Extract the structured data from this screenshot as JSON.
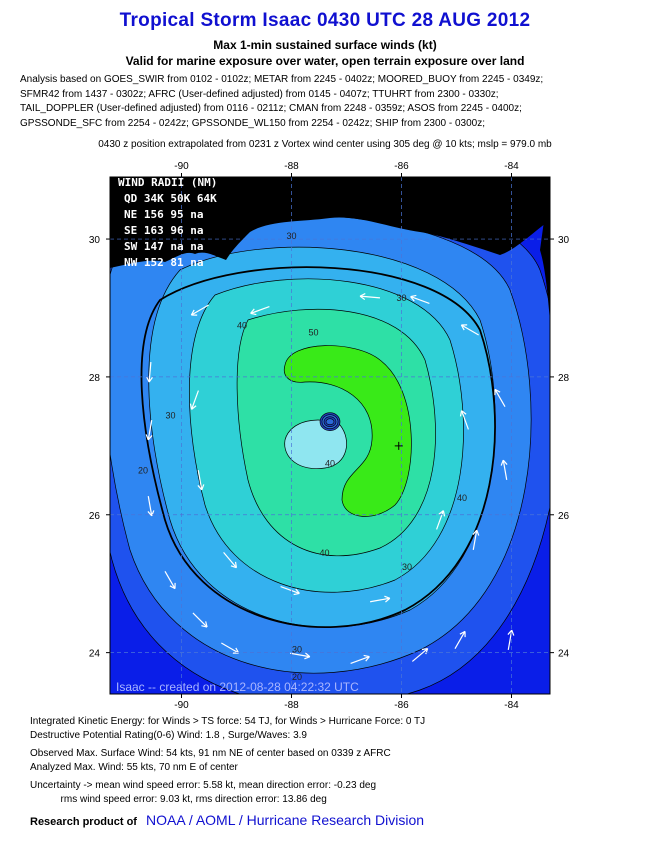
{
  "title": "Tropical Storm Isaac 0430 UTC 28 AUG 2012",
  "subtitle1": "Max 1-min sustained surface winds (kt)",
  "subtitle2": "Valid for marine exposure over water, open terrain exposure over land",
  "analysis_lines": [
    "Analysis based on GOES_SWIR from 0102 - 0102z; METAR from 2245 - 0402z; MOORED_BUOY from 2245 - 0349z;",
    "SFMR42 from 1437 - 0302z; AFRC (User-defined adjusted) from 0145 - 0407z; TTUHRT from 2300 - 0330z;",
    "TAIL_DOPPLER (User-defined adjusted) from 0116 - 0211z; CMAN from 2248 - 0359z; ASOS from 2245 - 0400z;",
    "GPSSONDE_SFC from 2254 - 0242z; GPSSONDE_WL150 from 2254 - 0242z; SHIP from 2300 - 0300z;"
  ],
  "extrapolation": "0430 z position extrapolated from 0231 z Vortex wind center using 305 deg @ 10 kts; mslp = 979.0 mb",
  "wind_radii": {
    "header": "WIND RADII (NM)",
    "columns": "QD  34K  50K  64K",
    "rows": [
      "NE  156   95   na",
      "SE  163   96   na",
      "SW  147   na   na",
      "NW  152   81   na"
    ]
  },
  "credit": "Isaac -- created on 2012-08-28 04:22:32 UTC",
  "chart_data": {
    "type": "heatmap",
    "x_ticks": [
      "-90",
      "-88",
      "-86",
      "-84"
    ],
    "y_ticks": [
      "30",
      "28",
      "26",
      "24"
    ],
    "xlim": [
      -91.3,
      -83.3
    ],
    "ylim": [
      23.4,
      30.9
    ],
    "storm_center": {
      "lon": -87.3,
      "lat": 27.35
    },
    "contour_levels_kt": [
      20,
      30,
      40,
      50
    ],
    "contour_labels": [
      {
        "text": "30",
        "lon": -88.0,
        "lat": 30.0
      },
      {
        "text": "30",
        "lon": -86.0,
        "lat": 29.1
      },
      {
        "text": "30",
        "lon": -90.2,
        "lat": 27.4
      },
      {
        "text": "30",
        "lon": -85.9,
        "lat": 25.2
      },
      {
        "text": "30",
        "lon": -87.9,
        "lat": 24.0
      },
      {
        "text": "20",
        "lon": -90.7,
        "lat": 26.6
      },
      {
        "text": "20",
        "lon": -87.9,
        "lat": 23.6
      },
      {
        "text": "40",
        "lon": -88.9,
        "lat": 28.7
      },
      {
        "text": "40",
        "lon": -87.3,
        "lat": 26.7
      },
      {
        "text": "40",
        "lon": -87.4,
        "lat": 25.4
      },
      {
        "text": "40",
        "lon": -84.9,
        "lat": 26.2
      },
      {
        "text": "50",
        "lon": -87.6,
        "lat": 28.6
      }
    ],
    "center_mark_lon": -86.05,
    "center_mark_lat": 27.0,
    "colors": {
      "outer": "#0a1ee8",
      "lvl1": "#1f52ee",
      "lvl2": "#2f86f2",
      "lvl3": "#34b1ef",
      "lvl4": "#2fd0d6",
      "lvl5": "#2ee0a6",
      "ts": "#5cf06a",
      "peak": "#39ea18",
      "core": "#8fe6f0",
      "land": "#000000"
    }
  },
  "bottom_lines": [
    "Integrated Kinetic Energy: for Winds > TS force: 54 TJ, for Winds > Hurricane Force: 0 TJ",
    "Destructive Potential Rating(0-6)  Wind: 1.8 , Surge/Waves: 3.9",
    "Observed Max. Surface Wind: 54 kts, 91 nm NE of center based on 0339 z AFRC",
    "Analyzed Max. Wind: 55 kts, 70 nm  E of center",
    "Uncertainty -> mean wind speed error: 5.58 kt, mean direction error:  -0.23 deg",
    "           rms wind speed error: 9.03 kt, rms direction error: 13.86 deg"
  ],
  "research_label": "Research product of",
  "research_org": "NOAA  /  AOML  /  Hurricane Research Division"
}
